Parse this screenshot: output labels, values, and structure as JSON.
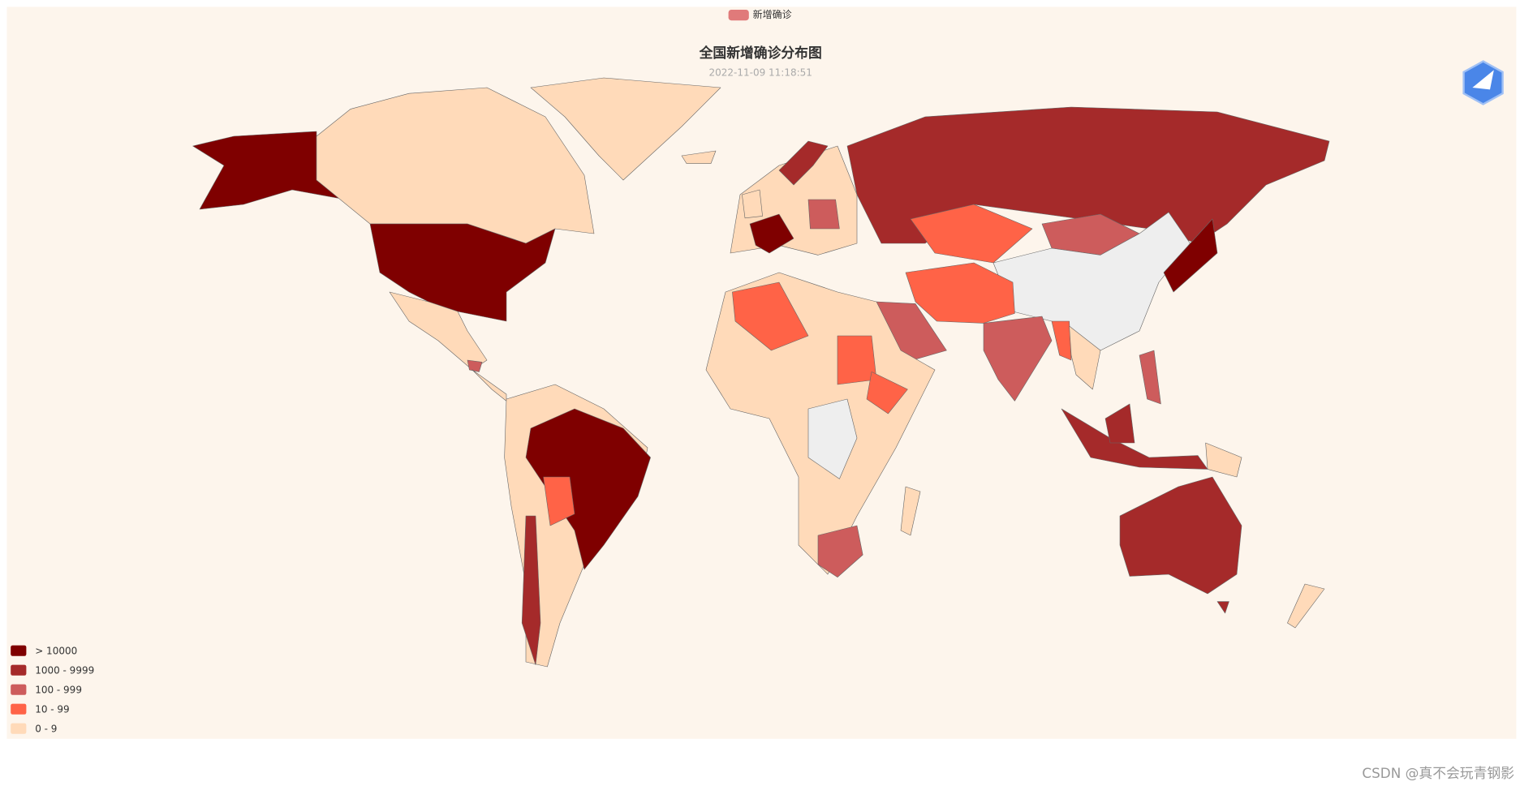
{
  "legend": {
    "label": "新增确诊",
    "color": "#e07a7a"
  },
  "header": {
    "title": "全国新增确诊分布图",
    "subtitle": "2022-11-09 11:18:51"
  },
  "visual_map": {
    "pieces": [
      {
        "label": "> 10000",
        "color": "#7f0000"
      },
      {
        "label": "1000 - 9999",
        "color": "#a52a2a"
      },
      {
        "label": "100 - 999",
        "color": "#cd5c5c"
      },
      {
        "label": "10 - 99",
        "color": "#ff6347"
      },
      {
        "label": "0 - 9",
        "color": "#ffdab9"
      }
    ],
    "no_data_color": "#eeeeee"
  },
  "watermark": "CSDN @真不会玩青钢影"
}
